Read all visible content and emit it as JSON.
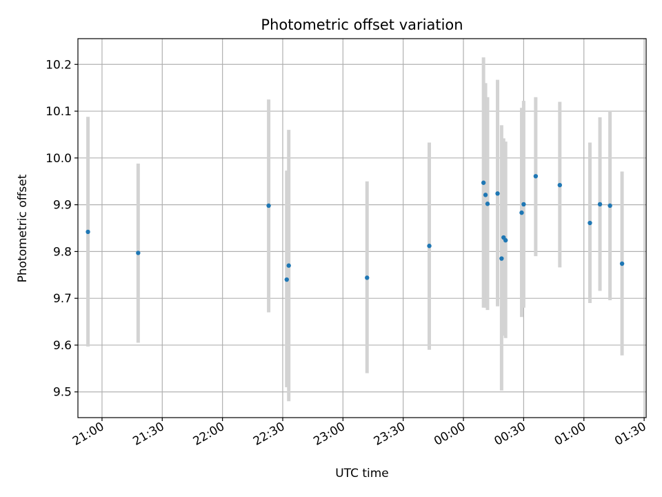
{
  "chart_data": {
    "type": "scatter",
    "title": "Photometric offset variation",
    "xlabel": "UTC time",
    "ylabel": "Photometric offset",
    "x_ticks": [
      "21:00",
      "21:30",
      "22:00",
      "22:30",
      "23:00",
      "23:30",
      "00:00",
      "00:30",
      "01:00",
      "01:30"
    ],
    "y_ticks": [
      "9.5",
      "9.6",
      "9.7",
      "9.8",
      "9.9",
      "10.0",
      "10.1",
      "10.2"
    ],
    "ylim": [
      9.445,
      10.255
    ],
    "xlim": [
      "20:48",
      "01:31"
    ],
    "grid": true,
    "colors": {
      "points": "#1f77b4",
      "errorbars": "#d3d3d3",
      "grid": "#b0b0b0"
    },
    "points": [
      {
        "x": "20:53",
        "y": 9.842,
        "ylow": 9.597,
        "yhigh": 10.088
      },
      {
        "x": "21:18",
        "y": 9.797,
        "ylow": 9.605,
        "yhigh": 9.988
      },
      {
        "x": "22:23",
        "y": 9.898,
        "ylow": 9.67,
        "yhigh": 10.125
      },
      {
        "x": "22:32",
        "y": 9.74,
        "ylow": 9.51,
        "yhigh": 9.973
      },
      {
        "x": "22:33",
        "y": 9.77,
        "ylow": 9.48,
        "yhigh": 10.06
      },
      {
        "x": "23:12",
        "y": 9.744,
        "ylow": 9.54,
        "yhigh": 9.95
      },
      {
        "x": "23:43",
        "y": 9.812,
        "ylow": 9.59,
        "yhigh": 10.033
      },
      {
        "x": "00:10",
        "y": 9.947,
        "ylow": 9.68,
        "yhigh": 10.215
      },
      {
        "x": "00:11",
        "y": 9.921,
        "ylow": 9.68,
        "yhigh": 10.16
      },
      {
        "x": "00:12",
        "y": 9.902,
        "ylow": 9.675,
        "yhigh": 10.13
      },
      {
        "x": "00:17",
        "y": 9.924,
        "ylow": 9.683,
        "yhigh": 10.167
      },
      {
        "x": "00:19",
        "y": 9.785,
        "ylow": 9.503,
        "yhigh": 10.07
      },
      {
        "x": "00:20",
        "y": 9.83,
        "ylow": 9.62,
        "yhigh": 10.042
      },
      {
        "x": "00:21",
        "y": 9.824,
        "ylow": 9.615,
        "yhigh": 10.035
      },
      {
        "x": "00:29",
        "y": 9.883,
        "ylow": 9.66,
        "yhigh": 10.107
      },
      {
        "x": "00:30",
        "y": 9.901,
        "ylow": 9.68,
        "yhigh": 10.122
      },
      {
        "x": "00:36",
        "y": 9.961,
        "ylow": 9.79,
        "yhigh": 10.13
      },
      {
        "x": "00:48",
        "y": 9.942,
        "ylow": 9.766,
        "yhigh": 10.12
      },
      {
        "x": "01:03",
        "y": 9.861,
        "ylow": 9.69,
        "yhigh": 10.033
      },
      {
        "x": "01:08",
        "y": 9.901,
        "ylow": 9.716,
        "yhigh": 10.087
      },
      {
        "x": "01:13",
        "y": 9.898,
        "ylow": 9.696,
        "yhigh": 10.1
      },
      {
        "x": "01:19",
        "y": 9.774,
        "ylow": 9.578,
        "yhigh": 9.971
      }
    ]
  }
}
